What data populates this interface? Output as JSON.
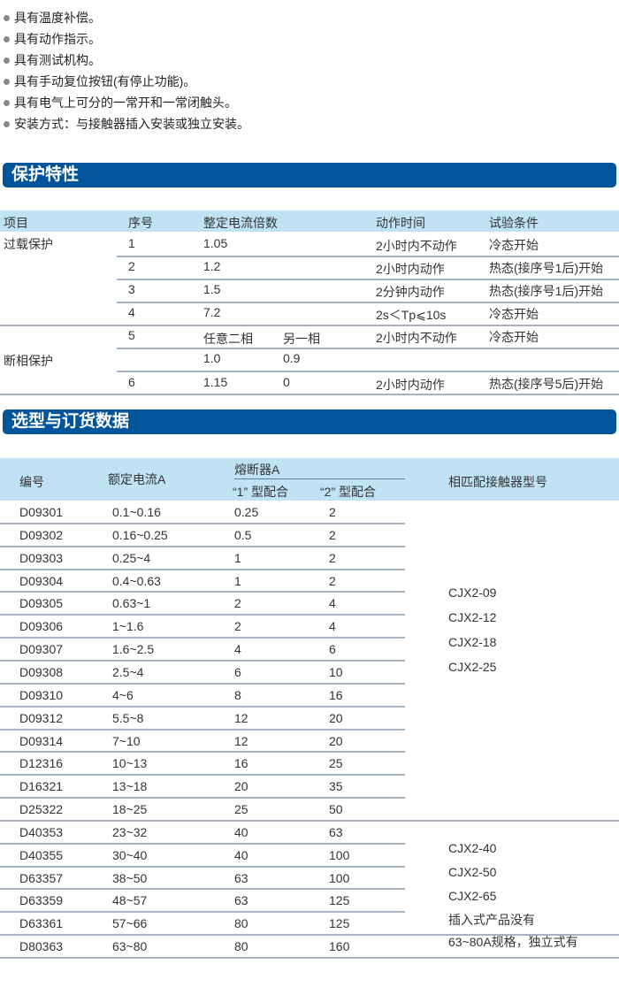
{
  "features": [
    "具有温度补偿。",
    "具有动作指示。",
    "具有测试机构。",
    "具有手动复位按钮(有停止功能)。",
    "具有电气上可分的一常开和一常闭触头。",
    "安装方式：与接触器插入安装或独立安装。"
  ],
  "protection": {
    "title": "保护特性",
    "headers": [
      "项目",
      "序号",
      "整定电流倍数",
      "动作时间",
      "试验条件"
    ],
    "group_overload": "过载保护",
    "group_phase": "断相保护",
    "rows": [
      {
        "no": "1",
        "mult": "1.05",
        "mult2": "",
        "time": "2小时内不动作",
        "cond": "冷态开始"
      },
      {
        "no": "2",
        "mult": "1.2",
        "mult2": "",
        "time": "2小时内动作",
        "cond": "热态(接序号1后)开始"
      },
      {
        "no": "3",
        "mult": "1.5",
        "mult2": "",
        "time": "2分钟内动作",
        "cond": "热态(接序号1后)开始"
      },
      {
        "no": "4",
        "mult": "7.2",
        "mult2": "",
        "time": "2s＜Tp⩽10s",
        "cond": "冷态开始"
      },
      {
        "no": "5",
        "mult": "任意二相",
        "mult2": "另一相",
        "time": "2小时内不动作",
        "cond": "冷态开始"
      },
      {
        "no": "",
        "mult": "1.0",
        "mult2": "0.9",
        "time": "",
        "cond": ""
      },
      {
        "no": "6",
        "mult": "1.15",
        "mult2": "0",
        "time": "2小时内动作",
        "cond": "热态(接序号5后)开始"
      }
    ]
  },
  "ordering": {
    "title": "选型与订货数据",
    "headers": {
      "code": "编号",
      "current": "额定电流A",
      "fuse": "熔断器A",
      "fuse1": "“1” 型配合",
      "fuse2": "“2” 型配合",
      "contactor": "相匹配接触器型号"
    },
    "rows": [
      [
        "D09301",
        "0.1~0.16",
        "0.25",
        "2"
      ],
      [
        "D09302",
        "0.16~0.25",
        "0.5",
        "2"
      ],
      [
        "D09303",
        "0.25~4",
        "1",
        "2"
      ],
      [
        "D09304",
        "0.4~0.63",
        "1",
        "2"
      ],
      [
        "D09305",
        "0.63~1",
        "2",
        "4"
      ],
      [
        "D09306",
        "1~1.6",
        "2",
        "4"
      ],
      [
        "D09307",
        "1.6~2.5",
        "4",
        "6"
      ],
      [
        "D09308",
        "2.5~4",
        "6",
        "10"
      ],
      [
        "D09310",
        "4~6",
        "8",
        "16"
      ],
      [
        "D09312",
        "5.5~8",
        "12",
        "20"
      ],
      [
        "D09314",
        "7~10",
        "12",
        "20"
      ],
      [
        "D12316",
        "10~13",
        "16",
        "25"
      ],
      [
        "D16321",
        "13~18",
        "20",
        "35"
      ],
      [
        "D25322",
        "18~25",
        "25",
        "50"
      ],
      [
        "D40353",
        "23~32",
        "40",
        "63"
      ],
      [
        "D40355",
        "30~40",
        "40",
        "100"
      ],
      [
        "D63357",
        "38~50",
        "63",
        "100"
      ],
      [
        "D63359",
        "48~57",
        "63",
        "125"
      ],
      [
        "D63361",
        "57~66",
        "80",
        "125"
      ],
      [
        "D80363",
        "63~80",
        "80",
        "160"
      ]
    ],
    "contactor_group1": [
      "CJX2-09",
      "CJX2-12",
      "CJX2-18",
      "CJX2-25"
    ],
    "contactor_group2": [
      "CJX2-40",
      "CJX2-50",
      "CJX2-65",
      "插入式产品没有",
      "63~80A规格，独立式有"
    ]
  },
  "colors": {
    "banner": "#02549b",
    "header_band": "#bfe3f5",
    "rule": "#a7b4bf"
  }
}
